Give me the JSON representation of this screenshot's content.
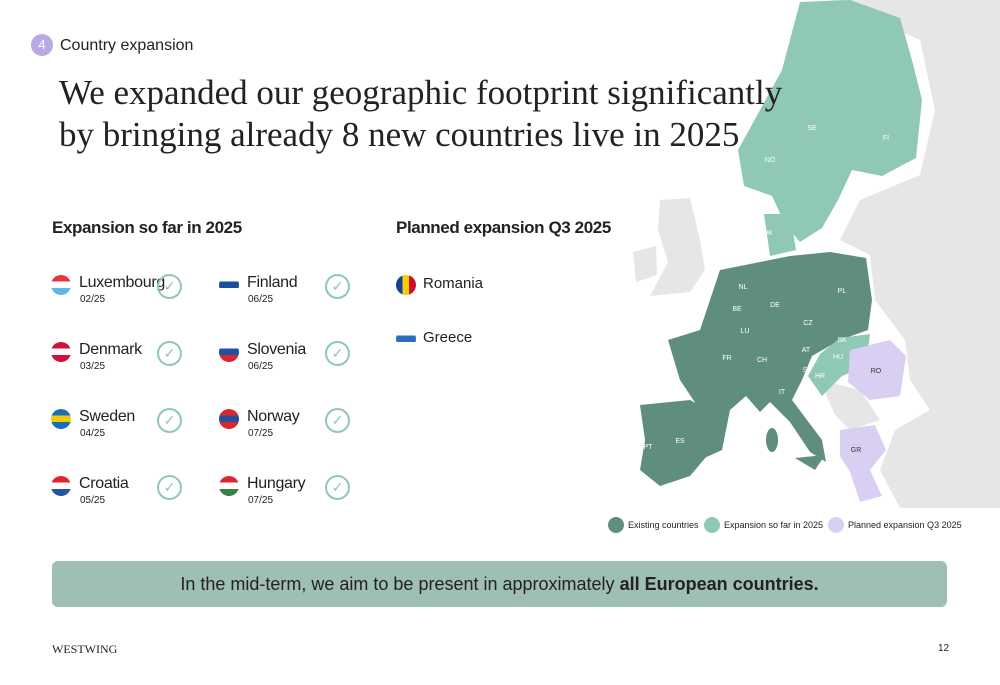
{
  "section": {
    "number": "4",
    "label": "Country expansion"
  },
  "headline": [
    "We expanded our geographic footprint significantly",
    "by bringing already 8 new countries live in 2025"
  ],
  "so_far": {
    "title": "Expansion so far in 2025",
    "countries": [
      {
        "name": "Luxembourg",
        "date": "02/25"
      },
      {
        "name": "Denmark",
        "date": "03/25"
      },
      {
        "name": "Sweden",
        "date": "04/25"
      },
      {
        "name": "Croatia",
        "date": "05/25"
      },
      {
        "name": "Finland",
        "date": "06/25"
      },
      {
        "name": "Slovenia",
        "date": "06/25"
      },
      {
        "name": "Norway",
        "date": "07/25"
      },
      {
        "name": "Hungary",
        "date": "07/25"
      }
    ]
  },
  "planned": {
    "title": "Planned expansion Q3 2025",
    "countries": [
      {
        "name": "Romania"
      },
      {
        "name": "Greece"
      }
    ]
  },
  "map": {
    "labels": [
      "SE",
      "FI",
      "NO",
      "DK",
      "NL",
      "BE",
      "LU",
      "DE",
      "PL",
      "CZ",
      "SK",
      "AT",
      "HU",
      "FR",
      "CH",
      "SI",
      "HR",
      "RO",
      "IT",
      "ES",
      "PT",
      "GR"
    ],
    "legend": [
      "Existing countries",
      "Expansion so far in 2025",
      "Planned expansion Q3 2025"
    ]
  },
  "banner": {
    "text": "In the mid-term, we aim to be present in approximately",
    "emphasis": "all European countries."
  },
  "footer": {
    "brand": "WESTWING",
    "page": "12"
  }
}
